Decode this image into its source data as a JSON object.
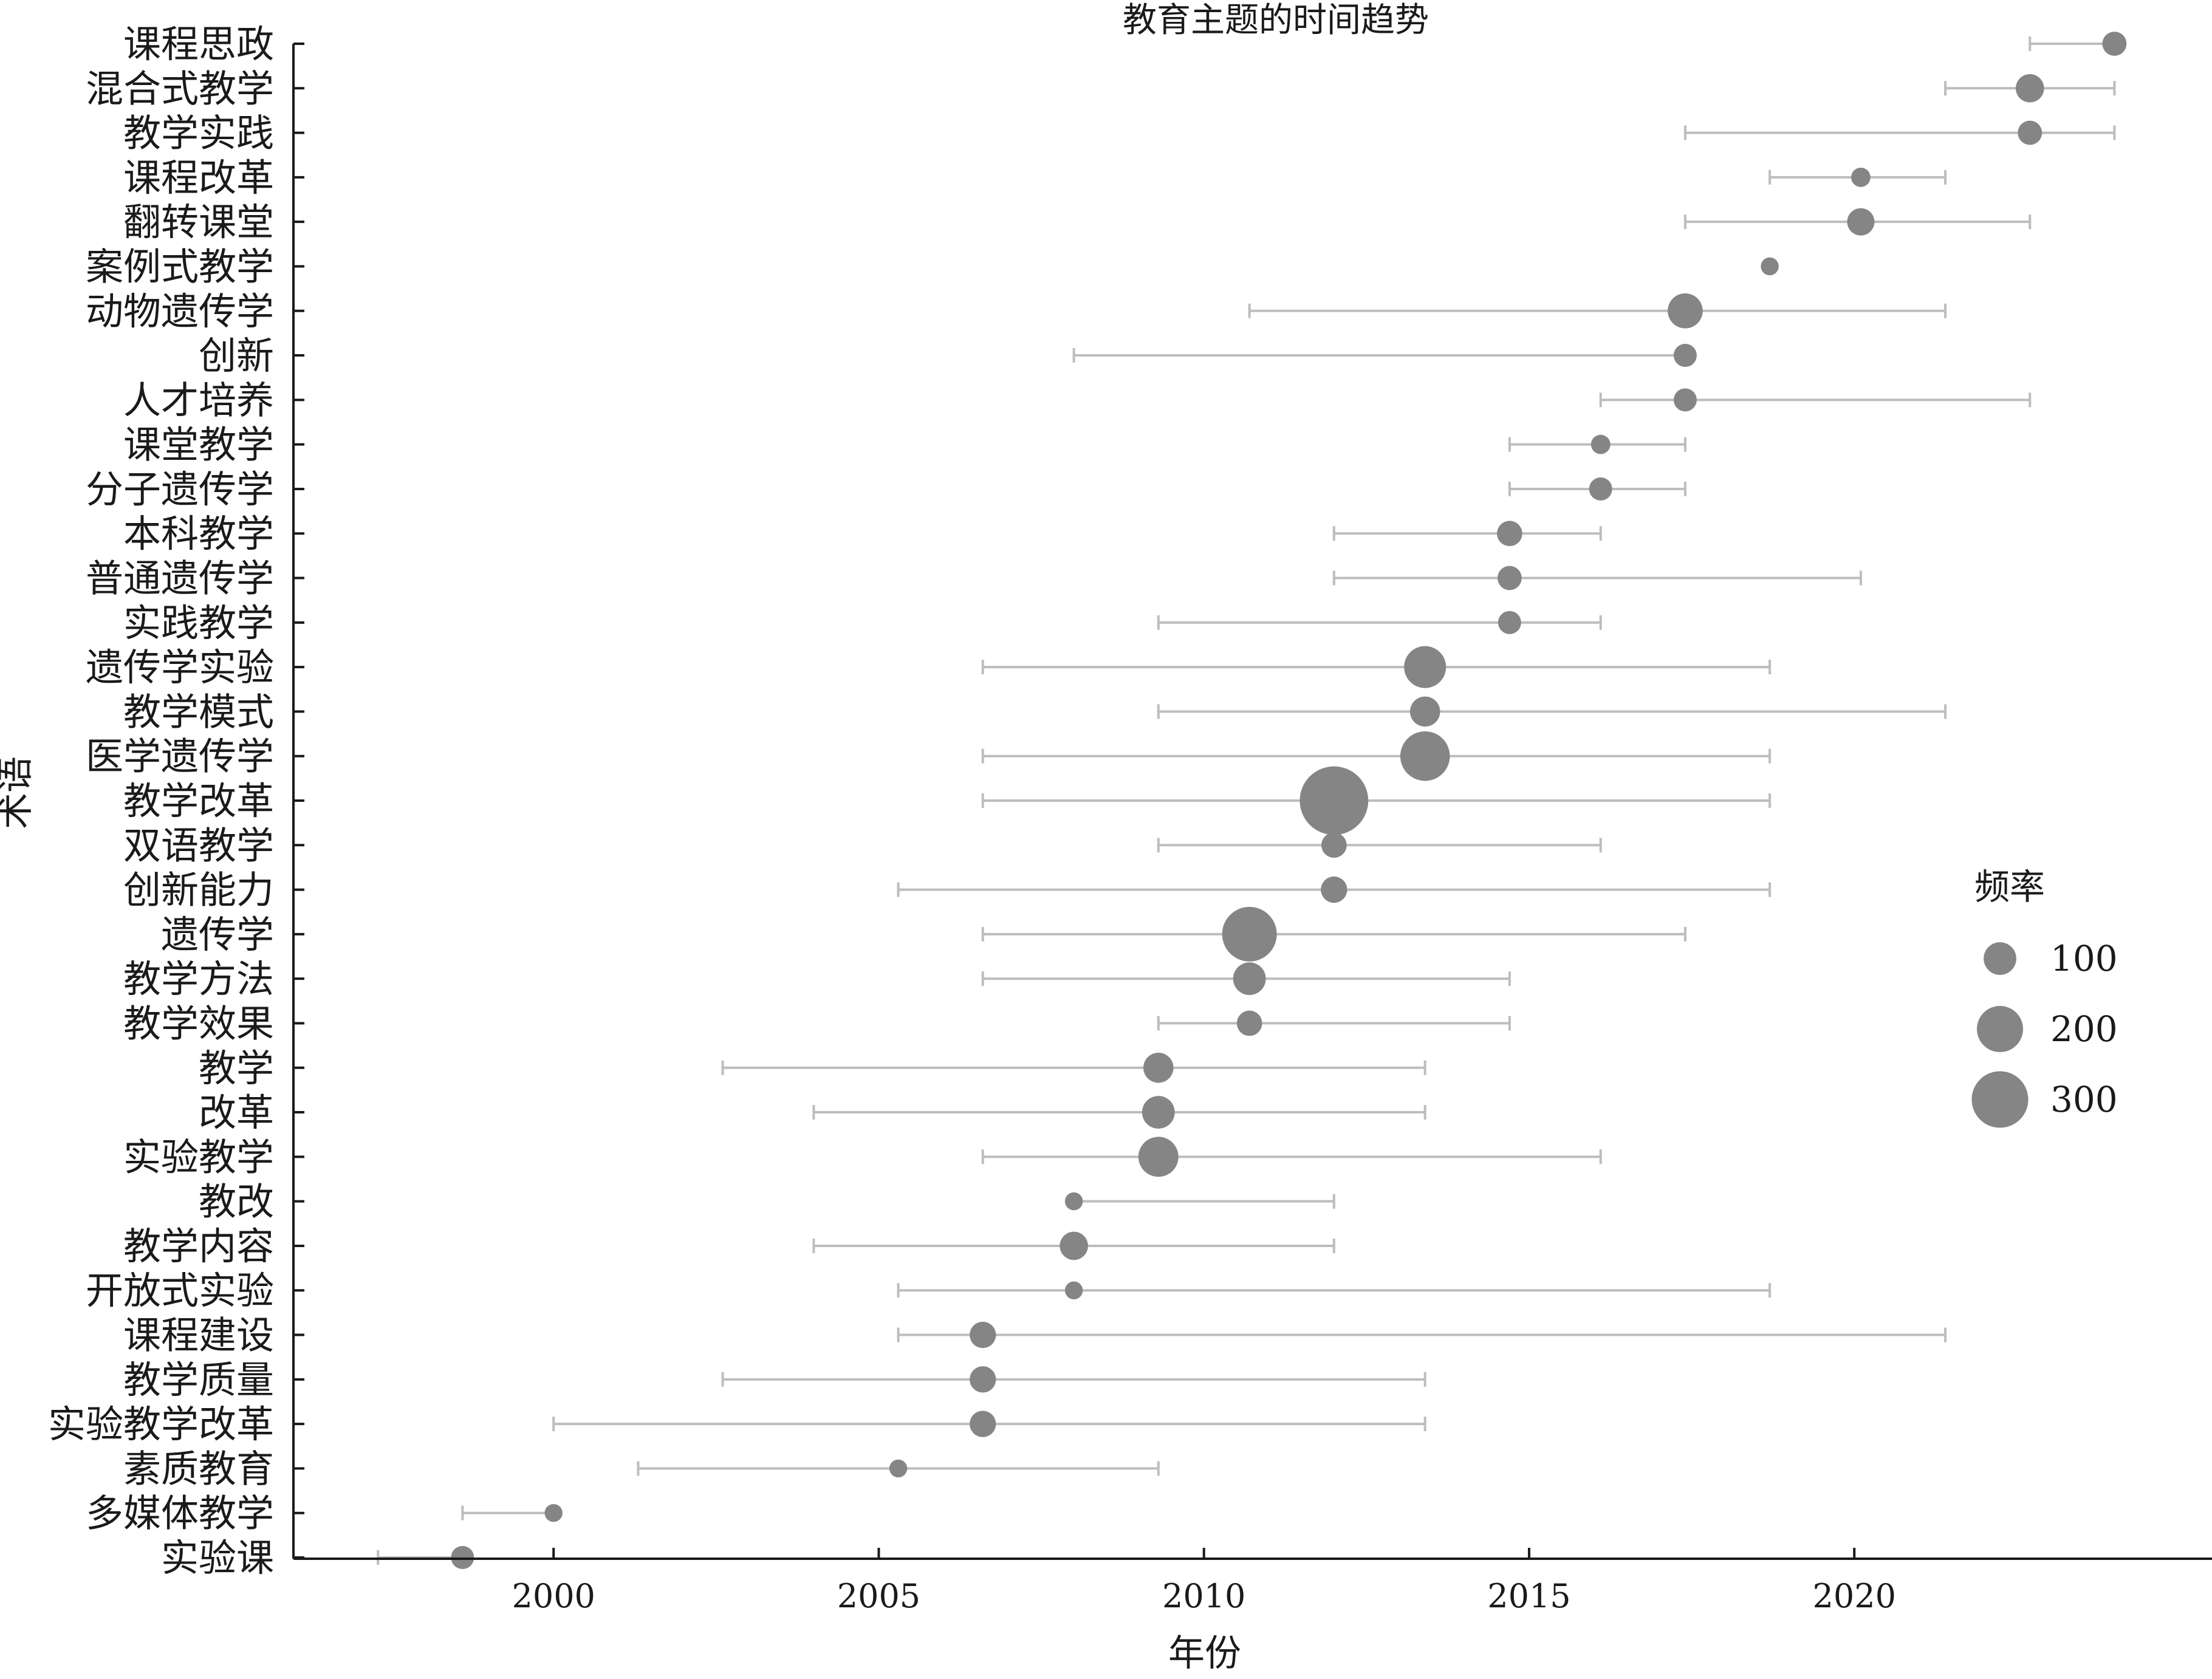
{
  "chart_data": {
    "type": "scatter",
    "title": "教育主题的时间趋势",
    "xlabel": "年份",
    "ylabel": "术语",
    "x_ticks": [
      2000,
      2005,
      2010,
      2015,
      2020
    ],
    "xlim": [
      1996,
      2025.5
    ],
    "grid": false,
    "legend": {
      "title": "频率",
      "placement": "right",
      "entries": [
        {
          "label": "100",
          "value": 100
        },
        {
          "label": "200",
          "value": 200
        },
        {
          "label": "300",
          "value": 300
        }
      ]
    },
    "colors": {
      "point": "#858585",
      "range_line": "#bdbdbd",
      "axis": "#1a1a1a"
    },
    "terms": [
      {
        "term": "课程思政",
        "year": 2024.0,
        "freq": 55,
        "start": 2022.7,
        "end": 2024.0
      },
      {
        "term": "混合式教学",
        "year": 2022.7,
        "freq": 75,
        "start": 2021.4,
        "end": 2024.0
      },
      {
        "term": "教学实践",
        "year": 2022.7,
        "freq": 55,
        "start": 2017.4,
        "end": 2024.0
      },
      {
        "term": "课程改革",
        "year": 2020.1,
        "freq": 35,
        "start": 2018.7,
        "end": 2021.4
      },
      {
        "term": "翻转课堂",
        "year": 2020.1,
        "freq": 70,
        "start": 2017.4,
        "end": 2022.7
      },
      {
        "term": "案例式教学",
        "year": 2018.7,
        "freq": 30,
        "start": 2018.7,
        "end": 2018.7
      },
      {
        "term": "动物遗传学",
        "year": 2017.4,
        "freq": 115,
        "start": 2010.7,
        "end": 2021.4
      },
      {
        "term": "创新",
        "year": 2017.4,
        "freq": 50,
        "start": 2008.0,
        "end": 2017.4
      },
      {
        "term": "人才培养",
        "year": 2017.4,
        "freq": 50,
        "start": 2016.1,
        "end": 2022.7
      },
      {
        "term": "课堂教学",
        "year": 2016.1,
        "freq": 35,
        "start": 2014.7,
        "end": 2017.4
      },
      {
        "term": "分子遗传学",
        "year": 2016.1,
        "freq": 50,
        "start": 2014.7,
        "end": 2017.4
      },
      {
        "term": "本科教学",
        "year": 2014.7,
        "freq": 60,
        "start": 2012.0,
        "end": 2016.1
      },
      {
        "term": "普通遗传学",
        "year": 2014.7,
        "freq": 55,
        "start": 2012.0,
        "end": 2020.1
      },
      {
        "term": "实践教学",
        "year": 2014.7,
        "freq": 50,
        "start": 2009.3,
        "end": 2016.1
      },
      {
        "term": "遗传学实验",
        "year": 2013.4,
        "freq": 165,
        "start": 2006.6,
        "end": 2018.7
      },
      {
        "term": "教学模式",
        "year": 2013.4,
        "freq": 85,
        "start": 2009.3,
        "end": 2021.4
      },
      {
        "term": "医学遗传学",
        "year": 2013.4,
        "freq": 230,
        "start": 2006.6,
        "end": 2018.7
      },
      {
        "term": "教学改革",
        "year": 2012.0,
        "freq": 440,
        "start": 2006.6,
        "end": 2018.7
      },
      {
        "term": "双语教学",
        "year": 2012.0,
        "freq": 60,
        "start": 2009.3,
        "end": 2016.1
      },
      {
        "term": "创新能力",
        "year": 2012.0,
        "freq": 65,
        "start": 2005.3,
        "end": 2018.7
      },
      {
        "term": "遗传学",
        "year": 2010.7,
        "freq": 280,
        "start": 2006.6,
        "end": 2017.4
      },
      {
        "term": "教学方法",
        "year": 2010.7,
        "freq": 100,
        "start": 2006.6,
        "end": 2014.7
      },
      {
        "term": "教学效果",
        "year": 2010.7,
        "freq": 60,
        "start": 2009.3,
        "end": 2014.7
      },
      {
        "term": "教学",
        "year": 2009.3,
        "freq": 85,
        "start": 2002.6,
        "end": 2013.4
      },
      {
        "term": "改革",
        "year": 2009.3,
        "freq": 100,
        "start": 2004.0,
        "end": 2013.4
      },
      {
        "term": "实验教学",
        "year": 2009.3,
        "freq": 150,
        "start": 2006.6,
        "end": 2016.1
      },
      {
        "term": "教改",
        "year": 2008.0,
        "freq": 30,
        "start": 2008.0,
        "end": 2012.0
      },
      {
        "term": "教学内容",
        "year": 2008.0,
        "freq": 75,
        "start": 2004.0,
        "end": 2012.0
      },
      {
        "term": "开放式实验",
        "year": 2008.0,
        "freq": 30,
        "start": 2005.3,
        "end": 2018.7
      },
      {
        "term": "课程建设",
        "year": 2006.6,
        "freq": 65,
        "start": 2005.3,
        "end": 2021.4
      },
      {
        "term": "教学质量",
        "year": 2006.6,
        "freq": 65,
        "start": 2002.6,
        "end": 2013.4
      },
      {
        "term": "实验教学改革",
        "year": 2006.6,
        "freq": 65,
        "start": 2000.0,
        "end": 2013.4
      },
      {
        "term": "素质教育",
        "year": 2005.3,
        "freq": 30,
        "start": 2001.3,
        "end": 2009.3
      },
      {
        "term": "多媒体教学",
        "year": 2000.0,
        "freq": 30,
        "start": 1998.6,
        "end": 2000.0
      },
      {
        "term": "实验课",
        "year": 1998.6,
        "freq": 50,
        "start": 1997.3,
        "end": 1998.6
      }
    ]
  }
}
